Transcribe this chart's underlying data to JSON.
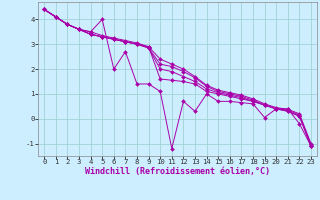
{
  "xlabel": "Windchill (Refroidissement éolien,°C)",
  "background_color": "#cceeff",
  "line_color": "#aa00aa",
  "grid_color": "#99cccc",
  "xlim": [
    -0.5,
    23.5
  ],
  "ylim": [
    -1.5,
    4.7
  ],
  "yticks": [
    -1,
    0,
    1,
    2,
    3,
    4
  ],
  "xticks": [
    0,
    1,
    2,
    3,
    4,
    5,
    6,
    7,
    8,
    9,
    10,
    11,
    12,
    13,
    14,
    15,
    16,
    17,
    18,
    19,
    20,
    21,
    22,
    23
  ],
  "lines": [
    [
      4.4,
      4.1,
      3.8,
      3.6,
      3.5,
      4.0,
      2.0,
      2.7,
      1.4,
      1.4,
      1.1,
      -1.2,
      0.7,
      0.3,
      1.0,
      0.7,
      0.7,
      0.65,
      0.6,
      0.05,
      0.4,
      0.4,
      -0.2,
      -1.1
    ],
    [
      4.4,
      4.1,
      3.8,
      3.6,
      3.4,
      3.3,
      3.2,
      3.1,
      3.0,
      2.9,
      1.6,
      1.55,
      1.5,
      1.4,
      1.1,
      1.0,
      0.9,
      0.8,
      0.7,
      0.55,
      0.4,
      0.3,
      0.1,
      -1.1
    ],
    [
      4.4,
      4.1,
      3.8,
      3.6,
      3.4,
      3.3,
      3.2,
      3.1,
      3.0,
      2.85,
      2.0,
      1.9,
      1.7,
      1.5,
      1.2,
      1.05,
      0.95,
      0.85,
      0.7,
      0.55,
      0.4,
      0.3,
      0.1,
      -1.1
    ],
    [
      4.4,
      4.1,
      3.8,
      3.6,
      3.4,
      3.3,
      3.2,
      3.1,
      3.0,
      2.85,
      2.2,
      2.1,
      1.9,
      1.65,
      1.3,
      1.1,
      1.0,
      0.9,
      0.75,
      0.55,
      0.4,
      0.35,
      0.15,
      -1.05
    ],
    [
      4.4,
      4.1,
      3.8,
      3.6,
      3.5,
      3.35,
      3.25,
      3.15,
      3.05,
      2.9,
      2.4,
      2.2,
      2.0,
      1.7,
      1.35,
      1.15,
      1.05,
      0.95,
      0.8,
      0.6,
      0.45,
      0.38,
      0.2,
      -1.0
    ]
  ],
  "xlabel_fontsize": 6.0,
  "tick_fontsize": 5.2,
  "marker": "D",
  "markersize": 2.0,
  "linewidth": 0.7
}
